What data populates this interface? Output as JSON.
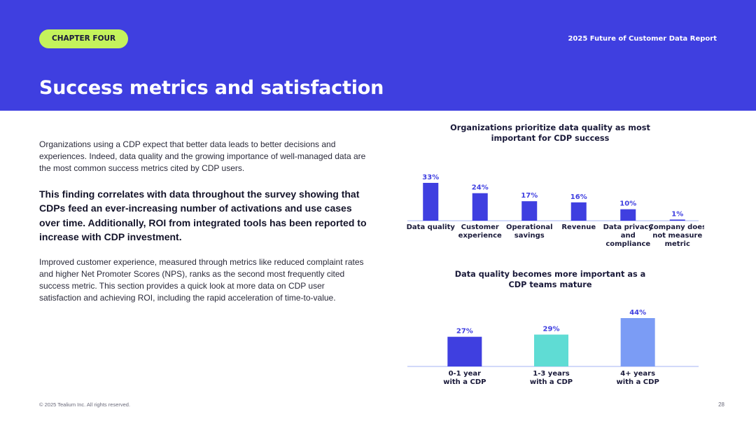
{
  "header": {
    "chapter_label": "CHAPTER FOUR",
    "report_title": "2025 Future of Customer Data Report",
    "page_title": "Success metrics and satisfaction"
  },
  "body": {
    "intro": "Organizations using a CDP expect that better data leads to better decisions and experiences. Indeed, data quality and the growing importance of well-managed data are the most common success metrics cited by CDP users.",
    "highlight": "This finding correlates with data throughout the survey showing that CDPs feed an ever-increasing number of activations and use cases over time. Additionally, ROI from integrated tools has been reported to increase with CDP investment.",
    "detail": "Improved customer experience, measured through metrics like reduced complaint rates and higher Net Promoter Scores (NPS), ranks as the second most frequently cited success metric. This section provides a quick look at more data on CDP user satisfaction and achieving ROI, including the rapid acceleration of time-to-value."
  },
  "footer": {
    "copyright": "© 2025 Tealium Inc. All rights reserved.",
    "page_number": "28"
  },
  "colors": {
    "header_bg": "#3f3fe0",
    "pill_bg": "#c4f25c",
    "bar_primary": "#3f3fe0",
    "bar_teal": "#5fdcd4",
    "bar_light_blue": "#7b9cf5",
    "axis": "#b8c2f5"
  },
  "chart_data": [
    {
      "type": "bar",
      "title": "Organizations prioritize data quality as most important for CDP success",
      "categories": [
        "Data quality",
        "Customer experience",
        "Operational savings",
        "Revenue",
        "Data privacy and compliance",
        "Company does not measure metric"
      ],
      "values": [
        33,
        24,
        17,
        16,
        10,
        1
      ],
      "value_labels": [
        "33%",
        "24%",
        "17%",
        "16%",
        "10%",
        "1%"
      ],
      "unit": "%",
      "grid": false
    },
    {
      "type": "bar",
      "title": "Data quality becomes more important as a CDP teams mature",
      "categories": [
        "0-1 year with a CDP",
        "1-3 years with a CDP",
        "4+ years with a CDP"
      ],
      "values": [
        27,
        29,
        44
      ],
      "value_labels": [
        "27%",
        "29%",
        "44%"
      ],
      "unit": "%",
      "bar_colors": [
        "#3f3fe0",
        "#5fdcd4",
        "#7b9cf5"
      ],
      "grid": false
    }
  ]
}
